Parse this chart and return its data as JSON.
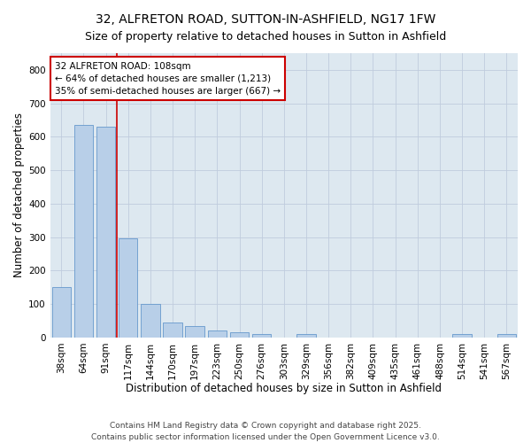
{
  "title": "32, ALFRETON ROAD, SUTTON-IN-ASHFIELD, NG17 1FW",
  "subtitle": "Size of property relative to detached houses in Sutton in Ashfield",
  "xlabel": "Distribution of detached houses by size in Sutton in Ashfield",
  "ylabel": "Number of detached properties",
  "categories": [
    "38sqm",
    "64sqm",
    "91sqm",
    "117sqm",
    "144sqm",
    "170sqm",
    "197sqm",
    "223sqm",
    "250sqm",
    "276sqm",
    "303sqm",
    "329sqm",
    "356sqm",
    "382sqm",
    "409sqm",
    "435sqm",
    "461sqm",
    "488sqm",
    "514sqm",
    "541sqm",
    "567sqm"
  ],
  "values": [
    150,
    635,
    630,
    295,
    100,
    45,
    35,
    20,
    15,
    10,
    0,
    10,
    0,
    0,
    0,
    0,
    0,
    0,
    10,
    0,
    10
  ],
  "bar_color": "#b8cfe8",
  "bar_edge_color": "#6699cc",
  "vline_pos": 2.5,
  "vline_color": "#cc0000",
  "annotation_text": "32 ALFRETON ROAD: 108sqm\n← 64% of detached houses are smaller (1,213)\n35% of semi-detached houses are larger (667) →",
  "annotation_box_facecolor": "#ffffff",
  "annotation_box_edgecolor": "#cc0000",
  "ylim": [
    0,
    850
  ],
  "yticks": [
    0,
    100,
    200,
    300,
    400,
    500,
    600,
    700,
    800
  ],
  "grid_color": "#c0ccdd",
  "bg_color": "#dde8f0",
  "fig_color": "#ffffff",
  "footer": "Contains HM Land Registry data © Crown copyright and database right 2025.\nContains public sector information licensed under the Open Government Licence v3.0.",
  "title_fontsize": 10,
  "subtitle_fontsize": 9,
  "xlabel_fontsize": 8.5,
  "ylabel_fontsize": 8.5,
  "tick_fontsize": 7.5,
  "annot_fontsize": 7.5,
  "footer_fontsize": 6.5
}
